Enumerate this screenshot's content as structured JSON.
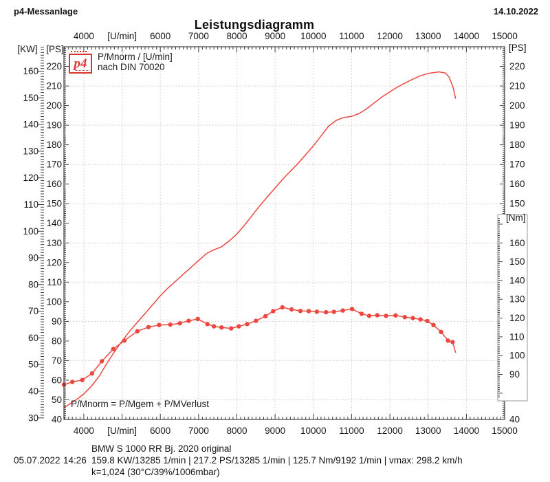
{
  "header": {
    "app": "p4-Messanlage",
    "date": "14.10.2022"
  },
  "title": "Leistungsdiagramm",
  "legend": {
    "logo_text": "p4",
    "line1": "P/Mnorm / [U/min]",
    "line2": "nach DIN 70020"
  },
  "annotation": {
    "formula": "P/Mnorm = P/Mgem + P/MVerlust"
  },
  "footer": {
    "vehicle": "BMW S 1000 RR Bj. 2020 original",
    "date": "05.07.2022",
    "time": "14:26",
    "measurements": "159.8 KW/13285 1/min  |  217.2 PS/13285 1/min  |  125.7 Nm/9192 1/min | vmax: 298.2 km/h",
    "correction": "k=1,024 (30°C/39%/1006mbar)"
  },
  "chart_data": {
    "type": "line",
    "title": "Leistungsdiagramm",
    "grid": {
      "vertical_every_rpm": 1000,
      "horizontal_ps": [
        50,
        70,
        90,
        110,
        130,
        150,
        170,
        190,
        210
      ]
    },
    "x_axis": {
      "min": 3480,
      "max": 15000,
      "tick_values": [
        4000,
        5000,
        6000,
        7000,
        8000,
        9000,
        10000,
        11000,
        12000,
        13000,
        14000,
        15000
      ],
      "tick_labels": [
        "4000",
        "[U/min]",
        "6000",
        "7000",
        "8000",
        "9000",
        "10000",
        "11000",
        "12000",
        "13000",
        "14000",
        "15000"
      ],
      "minor_tick_step": 100
    },
    "y_axis_ps": {
      "label": "[PS]",
      "min": 40,
      "max": 230,
      "tick_labels": [
        40,
        50,
        60,
        70,
        80,
        90,
        100,
        110,
        120,
        130,
        140,
        150,
        160,
        170,
        180,
        190,
        200,
        210,
        220
      ]
    },
    "y_axis_kw": {
      "label": "[KW]",
      "kw_to_ps": 1.35962,
      "tick_labels": [
        30,
        40,
        50,
        60,
        70,
        80,
        90,
        100,
        110,
        120,
        130,
        140,
        150,
        160
      ]
    },
    "y_axis_nm": {
      "label": "[Nm]",
      "min": 66,
      "max": 264.5,
      "tick_labels": [
        90,
        100,
        110,
        120,
        130,
        140,
        150,
        160
      ]
    },
    "colors": {
      "curve": "#ee4740",
      "grid": "#dcb9b9",
      "frame": "#3c3c3c",
      "nm_box": "#9a9a9a"
    },
    "series": [
      {
        "name": "power",
        "unit": "PS",
        "axis": "ps",
        "marker": false,
        "points": [
          [
            3480,
            46
          ],
          [
            3600,
            47.5
          ],
          [
            3800,
            50
          ],
          [
            4000,
            53
          ],
          [
            4200,
            57
          ],
          [
            4400,
            62
          ],
          [
            4600,
            68.5
          ],
          [
            4800,
            74.5
          ],
          [
            5000,
            80
          ],
          [
            5200,
            85
          ],
          [
            5400,
            89.5
          ],
          [
            5600,
            94
          ],
          [
            5800,
            98.5
          ],
          [
            6000,
            103
          ],
          [
            6200,
            107
          ],
          [
            6400,
            110.5
          ],
          [
            6600,
            114
          ],
          [
            6800,
            117.5
          ],
          [
            7000,
            121
          ],
          [
            7200,
            124.5
          ],
          [
            7400,
            126.5
          ],
          [
            7600,
            128
          ],
          [
            7800,
            131
          ],
          [
            8000,
            134.5
          ],
          [
            8200,
            139
          ],
          [
            8400,
            144
          ],
          [
            8600,
            149
          ],
          [
            8800,
            153.5
          ],
          [
            9000,
            158
          ],
          [
            9200,
            162.5
          ],
          [
            9400,
            166.5
          ],
          [
            9600,
            170.5
          ],
          [
            9800,
            175
          ],
          [
            10000,
            179.5
          ],
          [
            10200,
            184.5
          ],
          [
            10400,
            189.5
          ],
          [
            10600,
            192.5
          ],
          [
            10800,
            194
          ],
          [
            11000,
            194.5
          ],
          [
            11200,
            196
          ],
          [
            11400,
            198.5
          ],
          [
            11600,
            201.5
          ],
          [
            11800,
            204.5
          ],
          [
            12000,
            207
          ],
          [
            12200,
            209.5
          ],
          [
            12400,
            211.5
          ],
          [
            12600,
            213.5
          ],
          [
            12800,
            215.2
          ],
          [
            13000,
            216.4
          ],
          [
            13285,
            217.2
          ],
          [
            13450,
            216.6
          ],
          [
            13550,
            214.5
          ],
          [
            13650,
            209.5
          ],
          [
            13720,
            203.5
          ]
        ]
      },
      {
        "name": "torque",
        "unit": "Nm",
        "axis": "nm",
        "marker": true,
        "points": [
          [
            3480,
            84.5
          ],
          [
            3700,
            86
          ],
          [
            3960,
            87
          ],
          [
            4215,
            90.5
          ],
          [
            4470,
            97
          ],
          [
            4770,
            103.5
          ],
          [
            5060,
            108
          ],
          [
            5400,
            113
          ],
          [
            5690,
            115.2
          ],
          [
            5970,
            116.3
          ],
          [
            6260,
            116.5
          ],
          [
            6510,
            117.2
          ],
          [
            6740,
            118.5
          ],
          [
            6980,
            119.5
          ],
          [
            7230,
            116.8
          ],
          [
            7400,
            115.6
          ],
          [
            7600,
            115
          ],
          [
            7850,
            114.5
          ],
          [
            8050,
            115.6
          ],
          [
            8270,
            116.8
          ],
          [
            8500,
            118.5
          ],
          [
            8750,
            121
          ],
          [
            8950,
            123.7
          ],
          [
            9192,
            125.7
          ],
          [
            9430,
            124.6
          ],
          [
            9660,
            123.8
          ],
          [
            9880,
            123.7
          ],
          [
            10090,
            123.4
          ],
          [
            10330,
            123.1
          ],
          [
            10540,
            123.3
          ],
          [
            10770,
            124
          ],
          [
            11010,
            124.8
          ],
          [
            11260,
            122.3
          ],
          [
            11460,
            121.2
          ],
          [
            11670,
            121.5
          ],
          [
            11900,
            121.2
          ],
          [
            12150,
            121.4
          ],
          [
            12390,
            120.5
          ],
          [
            12600,
            120
          ],
          [
            12800,
            119.3
          ],
          [
            12980,
            118.4
          ],
          [
            13140,
            116.3
          ],
          [
            13340,
            112.6
          ],
          [
            13520,
            108
          ],
          [
            13640,
            107.2
          ],
          [
            13720,
            101.5
          ]
        ]
      }
    ]
  }
}
